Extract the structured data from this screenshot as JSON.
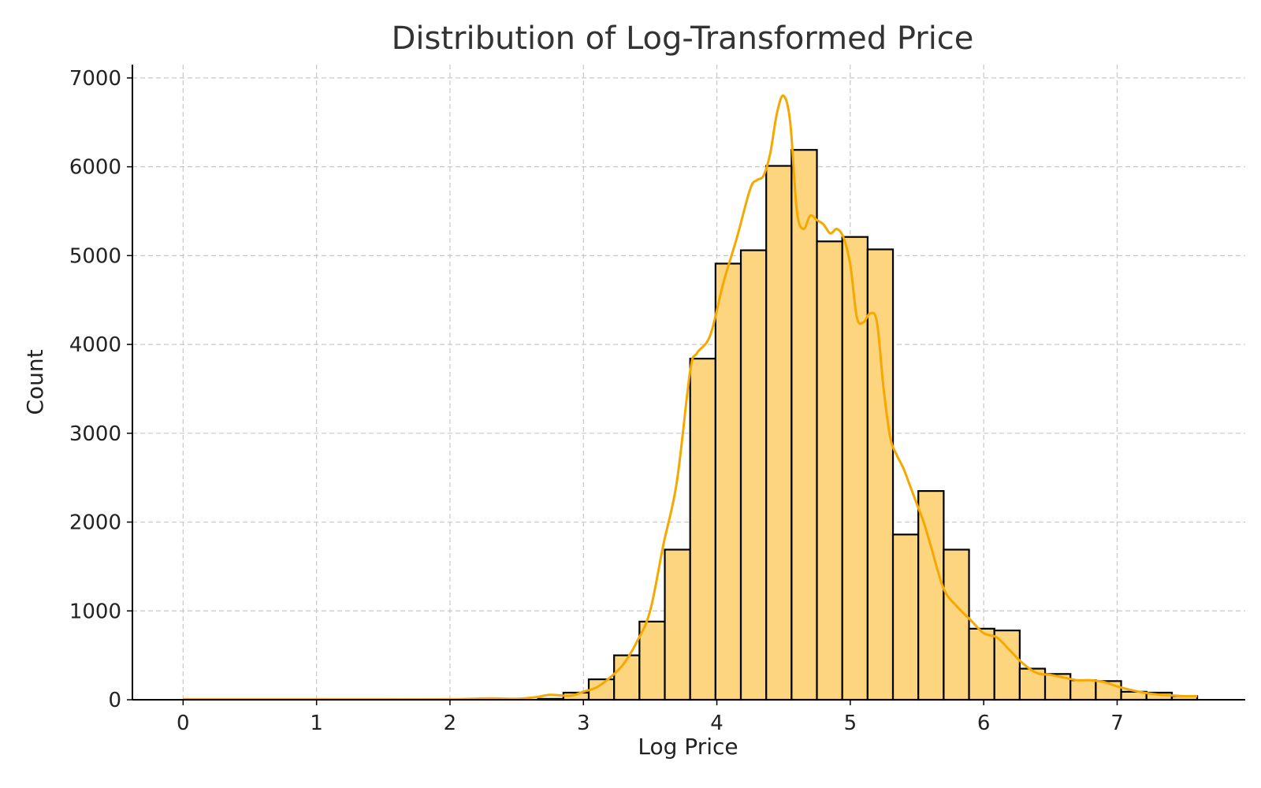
{
  "chart_data": {
    "type": "bar",
    "title": "Distribution of Log-Transformed Price",
    "xlabel": "Log Price",
    "ylabel": "Count",
    "xlim": [
      -0.38,
      7.96
    ],
    "ylim": [
      0,
      7150
    ],
    "xticks": [
      "0",
      "1",
      "2",
      "3",
      "4",
      "5",
      "6",
      "7"
    ],
    "yticks": [
      "0",
      "1000",
      "2000",
      "3000",
      "4000",
      "5000",
      "6000",
      "7000"
    ],
    "grid": true,
    "bar_color": "#fdd57e",
    "kde_color": "#f5a800",
    "bins": {
      "start": 2.66,
      "width": 0.19,
      "values": [
        10,
        80,
        230,
        500,
        880,
        1690,
        3840,
        4910,
        5060,
        6010,
        6190,
        5160,
        5210,
        5070,
        1860,
        2350,
        1690,
        800,
        780,
        350,
        290,
        220,
        210,
        90,
        80,
        40
      ]
    },
    "kde": {
      "x": [
        0,
        0.5,
        1,
        1.5,
        2,
        2.3,
        2.5,
        2.65,
        2.75,
        2.9,
        3,
        3.1,
        3.2,
        3.3,
        3.4,
        3.5,
        3.6,
        3.7,
        3.8,
        3.85,
        3.95,
        4.05,
        4.15,
        4.25,
        4.3,
        4.35,
        4.4,
        4.45,
        4.5,
        4.55,
        4.6,
        4.65,
        4.7,
        4.75,
        4.8,
        4.85,
        4.9,
        4.95,
        5,
        5.05,
        5.1,
        5.15,
        5.2,
        5.25,
        5.3,
        5.35,
        5.4,
        5.45,
        5.5,
        5.55,
        5.6,
        5.7,
        5.8,
        5.9,
        6,
        6.1,
        6.2,
        6.3,
        6.4,
        6.5,
        6.6,
        6.7,
        6.8,
        6.9,
        7,
        7.1,
        7.2,
        7.3,
        7.4,
        7.5,
        7.6
      ],
      "y": [
        5,
        5,
        5,
        5,
        5,
        15,
        10,
        30,
        55,
        45,
        90,
        140,
        250,
        400,
        650,
        1000,
        1750,
        2450,
        3700,
        3900,
        4100,
        4700,
        5200,
        5750,
        5850,
        5900,
        6150,
        6600,
        6800,
        6500,
        5500,
        5300,
        5450,
        5400,
        5350,
        5250,
        5300,
        5200,
        4900,
        4300,
        4250,
        4350,
        4250,
        3500,
        2950,
        2750,
        2600,
        2400,
        2200,
        2000,
        1750,
        1250,
        1050,
        900,
        750,
        700,
        550,
        400,
        300,
        280,
        250,
        220,
        220,
        200,
        150,
        110,
        80,
        60,
        50,
        40,
        40
      ]
    }
  }
}
